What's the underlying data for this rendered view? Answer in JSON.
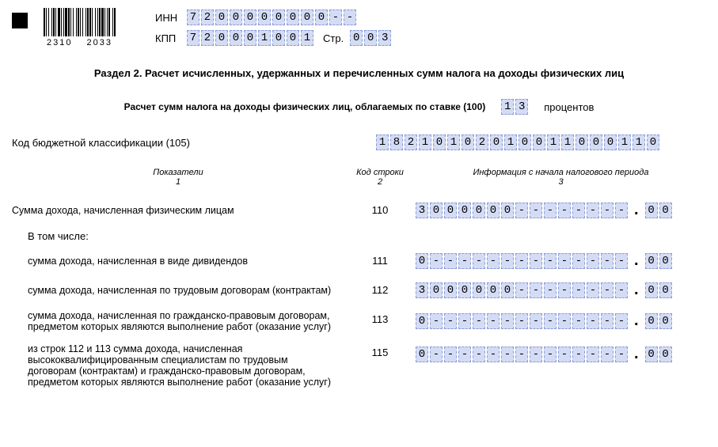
{
  "barcode_numbers": [
    "2310",
    "2033"
  ],
  "header": {
    "inn_label": "ИНН",
    "inn_value": "7200000000--",
    "kpp_label": "КПП",
    "kpp_value": "720001001",
    "page_label": "Стр.",
    "page_value": "003"
  },
  "section_title": "Раздел 2. Расчет исчисленных, удержанных и перечисленных сумм налога на доходы физических лиц",
  "rate": {
    "text_before": "Расчет сумм налога на доходы физических лиц, облагаемых по ставке (100)",
    "value": "13",
    "text_after": "процентов"
  },
  "kbk": {
    "label": "Код бюджетной классификации  (105)",
    "value": "18210102010011000110"
  },
  "columns": {
    "c1": "Показатели",
    "c1_sub": "1",
    "c2": "Код строки",
    "c2_sub": "2",
    "c3": "Информация с начала налогового периода",
    "c3_sub": "3"
  },
  "including_label": "В том числе:",
  "rows": [
    {
      "label": "Сумма дохода, начисленная физическим лицам",
      "code": "110",
      "int": "3000000--------",
      "frac": "00",
      "indent": false
    },
    {
      "label": "сумма дохода, начисленная в виде дивидендов",
      "code": "111",
      "int": "0--------------",
      "frac": "00",
      "indent": true
    },
    {
      "label": "сумма дохода, начисленная по трудовым договорам (контрактам)",
      "code": "112",
      "int": "3000000--------",
      "frac": "00",
      "indent": true
    },
    {
      "label": "сумма дохода, начисленная по гражданско-правовым договорам, предметом которых являются выполнение работ (оказание услуг)",
      "code": "113",
      "int": "0--------------",
      "frac": "00",
      "indent": true
    },
    {
      "label": "из строк 112 и 113 сумма дохода, начисленная высококвалифицированным специалистам по трудовым договорам (контрактам) и гражданско-правовым договорам, предметом которых являются выполнение работ (оказание услуг)",
      "code": "115",
      "int": "0--------------",
      "frac": "00",
      "indent": true
    }
  ],
  "style": {
    "cell_bg": "#d4dcf5",
    "cell_border": "#8a9bd4"
  }
}
